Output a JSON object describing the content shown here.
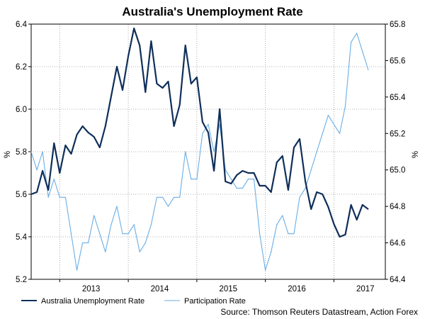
{
  "chart_data": {
    "type": "line",
    "title": "Australia's Unemployment Rate",
    "source": "Source: Thomson Reuters Datastream, Action Forex",
    "left_axis": {
      "label": "%",
      "ylim": [
        5.2,
        6.4
      ],
      "ticks": [
        "6.4",
        "6.2",
        "6.0",
        "5.8",
        "5.6",
        "5.4",
        "5.2"
      ]
    },
    "right_axis": {
      "label": "%",
      "ylim": [
        64.4,
        65.8
      ],
      "ticks": [
        "65.8",
        "65.6",
        "65.4",
        "65.2",
        "65.0",
        "64.8",
        "64.6",
        "64.4"
      ]
    },
    "x_ticks": [
      "2013",
      "2014",
      "2015",
      "2016",
      "2017"
    ],
    "x_range": [
      "2012-08",
      "2017-10"
    ],
    "grid": true,
    "legend_position": "bottom-left",
    "series": [
      {
        "name": "Australia Unemployment Rate",
        "axis": "left",
        "color": "#0f2f5a",
        "start": "2012-08",
        "values": [
          5.6,
          5.61,
          5.71,
          5.62,
          5.84,
          5.7,
          5.83,
          5.79,
          5.88,
          5.92,
          5.89,
          5.87,
          5.82,
          5.92,
          6.06,
          6.2,
          6.09,
          6.25,
          6.38,
          6.3,
          6.08,
          6.32,
          6.12,
          6.1,
          6.13,
          5.92,
          6.02,
          6.3,
          6.12,
          6.15,
          5.94,
          5.89,
          5.71,
          6.0,
          5.66,
          5.65,
          5.69,
          5.71,
          5.7,
          5.7,
          5.64,
          5.64,
          5.61,
          5.75,
          5.78,
          5.62,
          5.82,
          5.86,
          5.66,
          5.53,
          5.61,
          5.6,
          5.54,
          5.46,
          5.4,
          5.41,
          5.55,
          5.48,
          5.55,
          5.53
        ]
      },
      {
        "name": "Participation Rate",
        "axis": "right",
        "color": "#6aaee6",
        "start": "2012-08",
        "values": [
          65.1,
          65.0,
          65.1,
          64.85,
          64.95,
          64.85,
          64.85,
          64.65,
          64.45,
          64.6,
          64.6,
          64.75,
          64.65,
          64.55,
          64.7,
          64.8,
          64.65,
          64.65,
          64.7,
          64.55,
          64.6,
          64.7,
          64.85,
          64.85,
          64.8,
          64.85,
          64.85,
          65.1,
          64.95,
          64.95,
          65.2,
          65.25,
          65.1,
          65.25,
          65.0,
          64.95,
          64.9,
          64.9,
          64.95,
          64.95,
          64.65,
          64.45,
          64.55,
          64.7,
          64.75,
          64.65,
          64.65,
          64.85,
          64.9,
          65.0,
          65.1,
          65.2,
          65.3,
          65.25,
          65.2,
          65.35,
          65.7,
          65.75,
          65.65,
          65.55
        ]
      }
    ]
  }
}
